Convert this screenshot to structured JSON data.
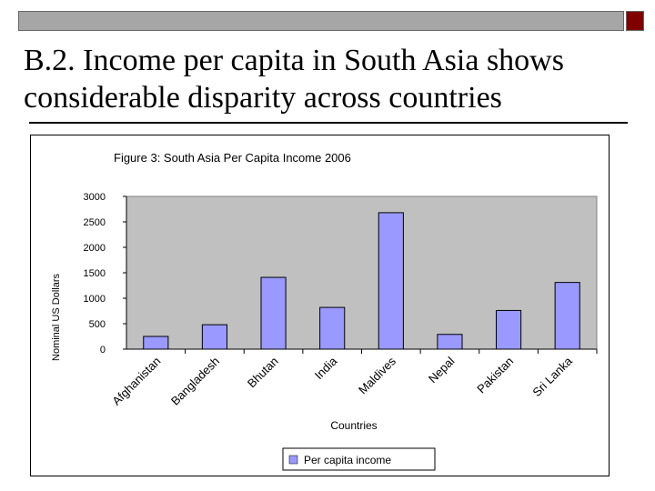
{
  "slide": {
    "title_line1": "B.2. Income per capita in South Asia shows",
    "title_line2": "considerable disparity across countries"
  },
  "colors": {
    "bar_fill": "#9999ff",
    "plot_bg": "#c0c0c0",
    "accent_box": "#800000",
    "header_bar": "#a6a6a6"
  },
  "chart_data": {
    "type": "bar",
    "title": "Figure 3:  South Asia Per Capita Income 2006",
    "xlabel": "Countries",
    "ylabel": "Nominal US Dollars",
    "categories": [
      "Afghanistan",
      "Bangladesh",
      "Bhutan",
      "India",
      "Maldives",
      "Nepal",
      "Pakistan",
      "Sri Lanka"
    ],
    "series": [
      {
        "name": "Per capita income",
        "values": [
          250,
          480,
          1410,
          820,
          2680,
          290,
          760,
          1310
        ]
      }
    ],
    "ylim": [
      0,
      3000
    ],
    "yticks": [
      0,
      500,
      1000,
      1500,
      2000,
      2500,
      3000
    ],
    "grid": false,
    "legend_position": "bottom-center"
  }
}
